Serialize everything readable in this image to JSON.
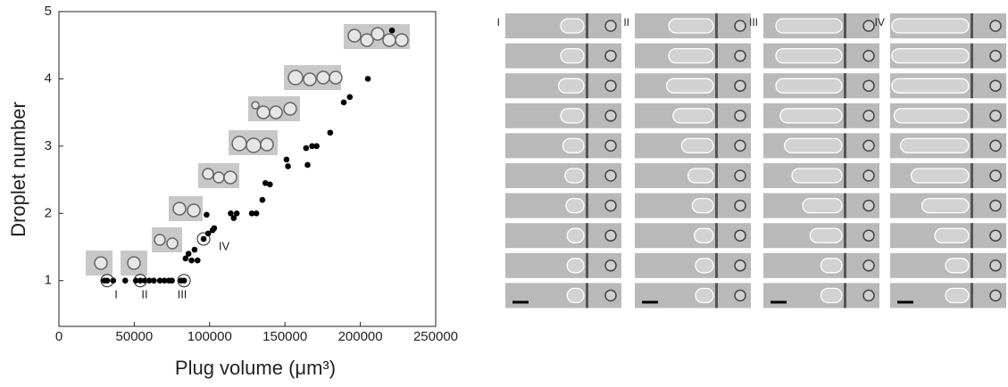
{
  "chart_data": {
    "type": "scatter",
    "xlabel": "Plug volume (μm³)",
    "ylabel": "Droplet number",
    "xlim": [
      0,
      250000
    ],
    "ylim": [
      0.32,
      5
    ],
    "xticks": [
      0,
      50000,
      100000,
      150000,
      200000,
      250000
    ],
    "yticks": [
      1,
      2,
      3,
      4,
      5
    ],
    "color": "#000000",
    "x": [
      30000,
      32000,
      36000,
      44000,
      51000,
      54000,
      57000,
      60000,
      63000,
      67000,
      70000,
      73000,
      75000,
      81000,
      83000,
      84000,
      86000,
      88000,
      90000,
      92000,
      96000,
      99000,
      102000,
      103000,
      98000,
      114000,
      116000,
      118000,
      128000,
      131000,
      135000,
      137000,
      140000,
      151000,
      152000,
      164000,
      165000,
      168000,
      171000,
      180000,
      189000,
      193000,
      205000,
      221000
    ],
    "values": [
      1,
      1,
      1,
      1,
      1,
      1,
      1,
      1,
      1,
      1,
      1,
      1,
      1,
      1,
      1,
      1.33,
      1.4,
      1.3,
      1.46,
      1.3,
      1.62,
      1.7,
      1.75,
      1.78,
      1.98,
      2,
      1.93,
      2,
      2,
      2,
      2.2,
      2.45,
      2.43,
      2.8,
      2.7,
      2.97,
      2.72,
      3,
      3,
      3.2,
      3.65,
      3.73,
      4,
      4.72
    ],
    "annotations": [
      "I",
      "II",
      "III",
      "IV"
    ]
  }
}
